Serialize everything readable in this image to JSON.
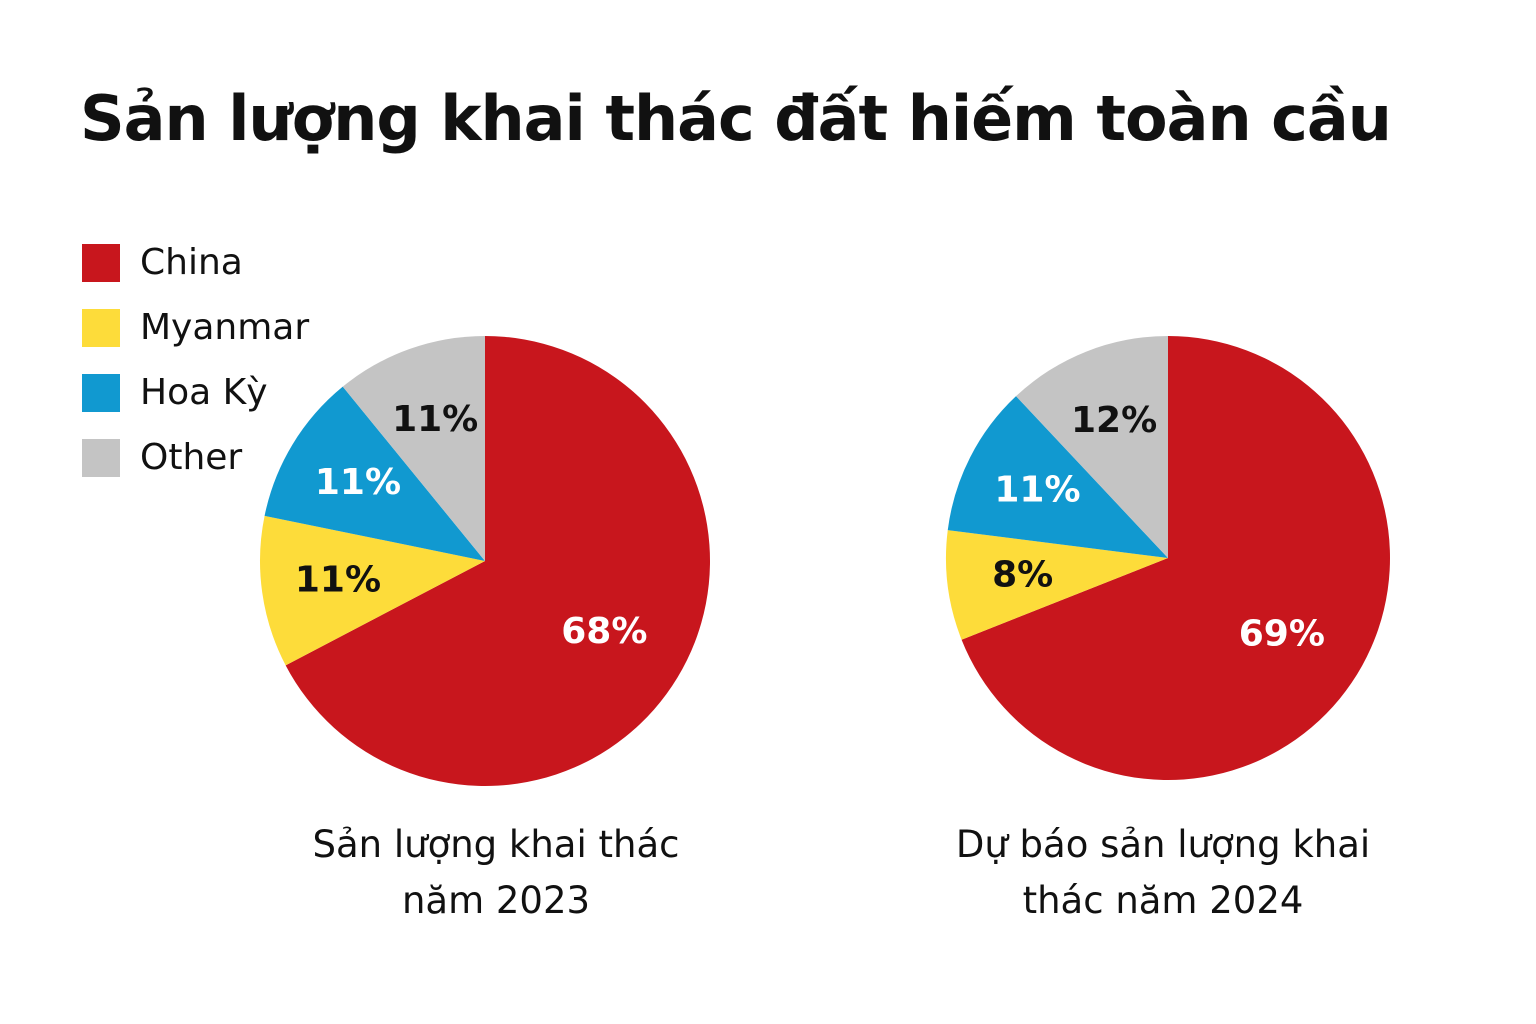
{
  "chart_data": [
    {
      "type": "pie",
      "title": "Sản lượng khai thác năm 2023",
      "categories": [
        "China",
        "Myanmar",
        "Hoa Kỳ",
        "Other"
      ],
      "values": [
        68,
        11,
        11,
        11
      ],
      "labels": [
        "68%",
        "11%",
        "11%",
        "11%"
      ]
    },
    {
      "type": "pie",
      "title": "Dự báo sản lượng khai thác năm 2024",
      "categories": [
        "China",
        "Myanmar",
        "Hoa Kỳ",
        "Other"
      ],
      "values": [
        69,
        8,
        11,
        12
      ],
      "labels": [
        "69%",
        "8%",
        "11%",
        "12%"
      ]
    }
  ],
  "title": "Sản lượng khai thác đất hiếm toàn cầu",
  "legend": {
    "placement": "top-left",
    "items": [
      {
        "label": "China",
        "color": "#C8161D"
      },
      {
        "label": "Myanmar",
        "color": "#FDDC3A"
      },
      {
        "label": "Hoa Kỳ",
        "color": "#1199D0"
      },
      {
        "label": "Other",
        "color": "#C4C4C4"
      }
    ]
  },
  "label_colors": [
    "#FFFFFF",
    "#111111",
    "#FFFFFF",
    "#111111"
  ],
  "captions": {
    "pie1": [
      "Sản lượng khai thác",
      "năm 2023"
    ],
    "pie2": [
      "Dự báo sản lượng khai",
      "thác năm 2024"
    ]
  }
}
